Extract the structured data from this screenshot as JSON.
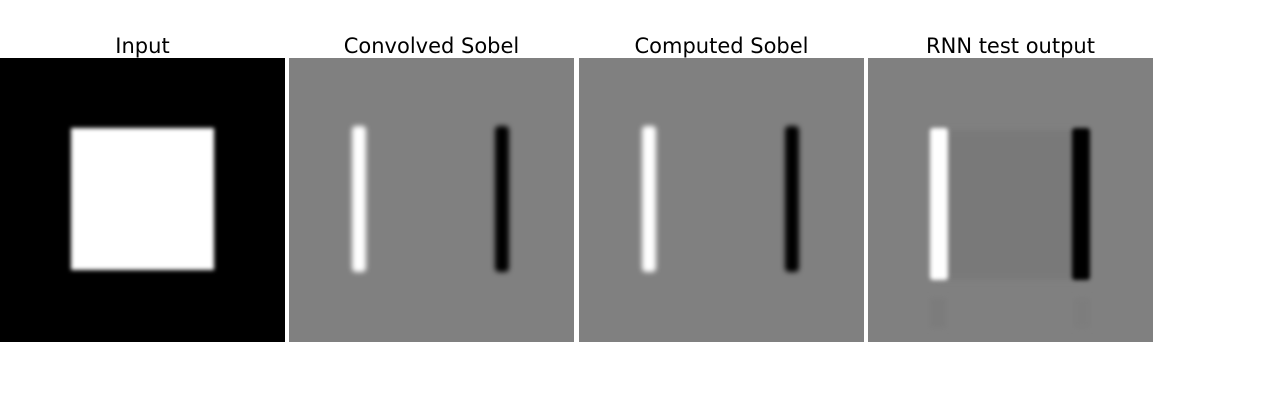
{
  "figure": {
    "panels": [
      {
        "title": "Input"
      },
      {
        "title": "Convolved Sobel"
      },
      {
        "title": "Computed Sobel"
      },
      {
        "title": "RNN test output"
      }
    ]
  },
  "colors": {
    "background": "#ffffff",
    "black": "#000000",
    "white": "#ffffff",
    "mid_gray": "#808080",
    "rnn_inner_gray": "#797979"
  }
}
